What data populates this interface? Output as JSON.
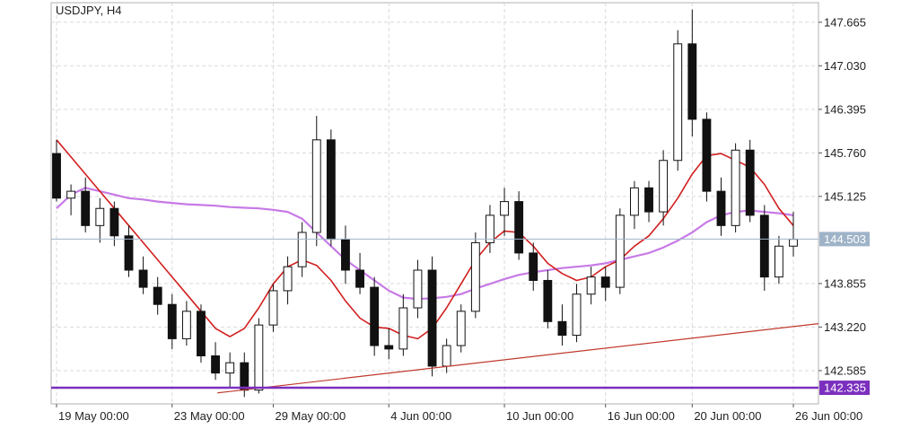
{
  "chart_data": {
    "type": "candlestick",
    "symbol_label": "USDJPY, H4",
    "y_axis": {
      "ticks": [
        "147.665",
        "147.030",
        "146.395",
        "145.760",
        "145.125",
        "144.503",
        "143.855",
        "143.220",
        "142.585",
        "142.335"
      ],
      "ylim": [
        142.1,
        147.95
      ]
    },
    "x_axis": {
      "ticks": [
        "19 May 00:00",
        "23 May 00:00",
        "29 May 00:00",
        "4 Jun 00:00",
        "10 Jun 00:00",
        "16 Jun 00:00",
        "20 Jun 00:00",
        "26 Jun 00:00"
      ]
    },
    "current_price": {
      "label": "144.503",
      "value": 144.503,
      "color": "#9fb3c8"
    },
    "support_level": {
      "label": "142.335",
      "value": 142.335,
      "color": "#7b2fbe"
    },
    "trendline": {
      "color": "#c0392b",
      "start_value": 142.26,
      "end_value": 143.27
    },
    "ma_fast_color": "#d11f1f",
    "ma_slow_color": "#c77ae6",
    "ma_fast": [
      145.95,
      145.7,
      145.45,
      145.2,
      144.95,
      144.7,
      144.45,
      144.2,
      143.95,
      143.7,
      143.45,
      143.2,
      143.08,
      143.2,
      143.5,
      143.85,
      144.1,
      144.2,
      144.12,
      143.9,
      143.6,
      143.35,
      143.22,
      143.2,
      143.1,
      143.05,
      143.2,
      143.5,
      143.85,
      144.2,
      144.45,
      144.62,
      144.6,
      144.4,
      144.15,
      144.0,
      143.9,
      143.95,
      144.1,
      144.2,
      144.4,
      144.55,
      144.8,
      145.1,
      145.45,
      145.72,
      145.75,
      145.65,
      145.55,
      145.3,
      144.95,
      144.7
    ],
    "ma_slow": [
      144.95,
      145.15,
      145.25,
      145.2,
      145.15,
      145.1,
      145.08,
      145.05,
      145.03,
      145.01,
      145.0,
      144.99,
      144.97,
      144.96,
      144.95,
      144.93,
      144.9,
      144.8,
      144.6,
      144.4,
      144.2,
      144.05,
      143.9,
      143.75,
      143.65,
      143.63,
      143.64,
      143.66,
      143.7,
      143.78,
      143.85,
      143.92,
      143.98,
      144.02,
      144.05,
      144.08,
      144.1,
      144.12,
      144.15,
      144.2,
      144.25,
      144.3,
      144.38,
      144.48,
      144.6,
      144.75,
      144.85,
      144.9,
      144.92,
      144.9,
      144.88,
      144.85
    ],
    "candles": [
      {
        "o": 145.75,
        "h": 145.95,
        "l": 145.05,
        "c": 145.1
      },
      {
        "o": 145.1,
        "h": 145.3,
        "l": 144.85,
        "c": 145.2
      },
      {
        "o": 145.2,
        "h": 145.4,
        "l": 144.6,
        "c": 144.7
      },
      {
        "o": 144.7,
        "h": 145.1,
        "l": 144.45,
        "c": 144.95
      },
      {
        "o": 144.95,
        "h": 145.05,
        "l": 144.4,
        "c": 144.55
      },
      {
        "o": 144.55,
        "h": 144.7,
        "l": 143.95,
        "c": 144.05
      },
      {
        "o": 144.05,
        "h": 144.25,
        "l": 143.7,
        "c": 143.8
      },
      {
        "o": 143.8,
        "h": 143.95,
        "l": 143.4,
        "c": 143.55
      },
      {
        "o": 143.55,
        "h": 143.7,
        "l": 142.9,
        "c": 143.05
      },
      {
        "o": 143.05,
        "h": 143.6,
        "l": 142.95,
        "c": 143.45
      },
      {
        "o": 143.45,
        "h": 143.55,
        "l": 142.7,
        "c": 142.8
      },
      {
        "o": 142.8,
        "h": 143.0,
        "l": 142.45,
        "c": 142.55
      },
      {
        "o": 142.55,
        "h": 142.85,
        "l": 142.35,
        "c": 142.7
      },
      {
        "o": 142.7,
        "h": 142.85,
        "l": 142.2,
        "c": 142.3
      },
      {
        "o": 142.3,
        "h": 143.35,
        "l": 142.25,
        "c": 143.25
      },
      {
        "o": 143.25,
        "h": 143.85,
        "l": 143.15,
        "c": 143.75
      },
      {
        "o": 143.75,
        "h": 144.25,
        "l": 143.55,
        "c": 144.1
      },
      {
        "o": 144.1,
        "h": 144.75,
        "l": 143.95,
        "c": 144.6
      },
      {
        "o": 144.6,
        "h": 146.3,
        "l": 144.4,
        "c": 145.95
      },
      {
        "o": 145.95,
        "h": 146.1,
        "l": 144.4,
        "c": 144.5
      },
      {
        "o": 144.5,
        "h": 144.7,
        "l": 143.85,
        "c": 144.05
      },
      {
        "o": 144.05,
        "h": 144.3,
        "l": 143.7,
        "c": 143.8
      },
      {
        "o": 143.8,
        "h": 143.95,
        "l": 142.8,
        "c": 142.95
      },
      {
        "o": 142.95,
        "h": 143.2,
        "l": 142.75,
        "c": 142.9
      },
      {
        "o": 142.9,
        "h": 143.7,
        "l": 142.8,
        "c": 143.5
      },
      {
        "o": 143.5,
        "h": 144.2,
        "l": 143.35,
        "c": 144.05
      },
      {
        "o": 144.05,
        "h": 144.25,
        "l": 142.5,
        "c": 142.65
      },
      {
        "o": 142.65,
        "h": 143.05,
        "l": 142.55,
        "c": 142.95
      },
      {
        "o": 142.95,
        "h": 143.55,
        "l": 142.85,
        "c": 143.45
      },
      {
        "o": 143.45,
        "h": 144.6,
        "l": 143.35,
        "c": 144.45
      },
      {
        "o": 144.45,
        "h": 145.0,
        "l": 144.3,
        "c": 144.85
      },
      {
        "o": 144.85,
        "h": 145.25,
        "l": 144.55,
        "c": 145.05
      },
      {
        "o": 145.05,
        "h": 145.2,
        "l": 144.2,
        "c": 144.3
      },
      {
        "o": 144.3,
        "h": 144.45,
        "l": 143.75,
        "c": 143.9
      },
      {
        "o": 143.9,
        "h": 144.05,
        "l": 143.2,
        "c": 143.3
      },
      {
        "o": 143.3,
        "h": 143.55,
        "l": 142.95,
        "c": 143.1
      },
      {
        "o": 143.1,
        "h": 143.85,
        "l": 143.0,
        "c": 143.7
      },
      {
        "o": 143.7,
        "h": 144.1,
        "l": 143.55,
        "c": 143.95
      },
      {
        "o": 143.95,
        "h": 144.1,
        "l": 143.6,
        "c": 143.8
      },
      {
        "o": 143.8,
        "h": 144.95,
        "l": 143.7,
        "c": 144.85
      },
      {
        "o": 144.85,
        "h": 145.35,
        "l": 144.65,
        "c": 145.25
      },
      {
        "o": 145.25,
        "h": 145.35,
        "l": 144.75,
        "c": 144.9
      },
      {
        "o": 144.9,
        "h": 145.8,
        "l": 144.7,
        "c": 145.65
      },
      {
        "o": 145.65,
        "h": 147.55,
        "l": 145.5,
        "c": 147.35
      },
      {
        "o": 147.35,
        "h": 147.85,
        "l": 146.0,
        "c": 146.25
      },
      {
        "o": 146.25,
        "h": 146.35,
        "l": 145.05,
        "c": 145.2
      },
      {
        "o": 145.2,
        "h": 145.4,
        "l": 144.55,
        "c": 144.7
      },
      {
        "o": 144.7,
        "h": 145.9,
        "l": 144.6,
        "c": 145.8
      },
      {
        "o": 145.8,
        "h": 145.95,
        "l": 144.75,
        "c": 144.85
      },
      {
        "o": 144.85,
        "h": 145.0,
        "l": 143.75,
        "c": 143.95
      },
      {
        "o": 143.95,
        "h": 144.55,
        "l": 143.85,
        "c": 144.4
      },
      {
        "o": 144.4,
        "h": 144.9,
        "l": 144.25,
        "c": 144.5
      }
    ]
  }
}
